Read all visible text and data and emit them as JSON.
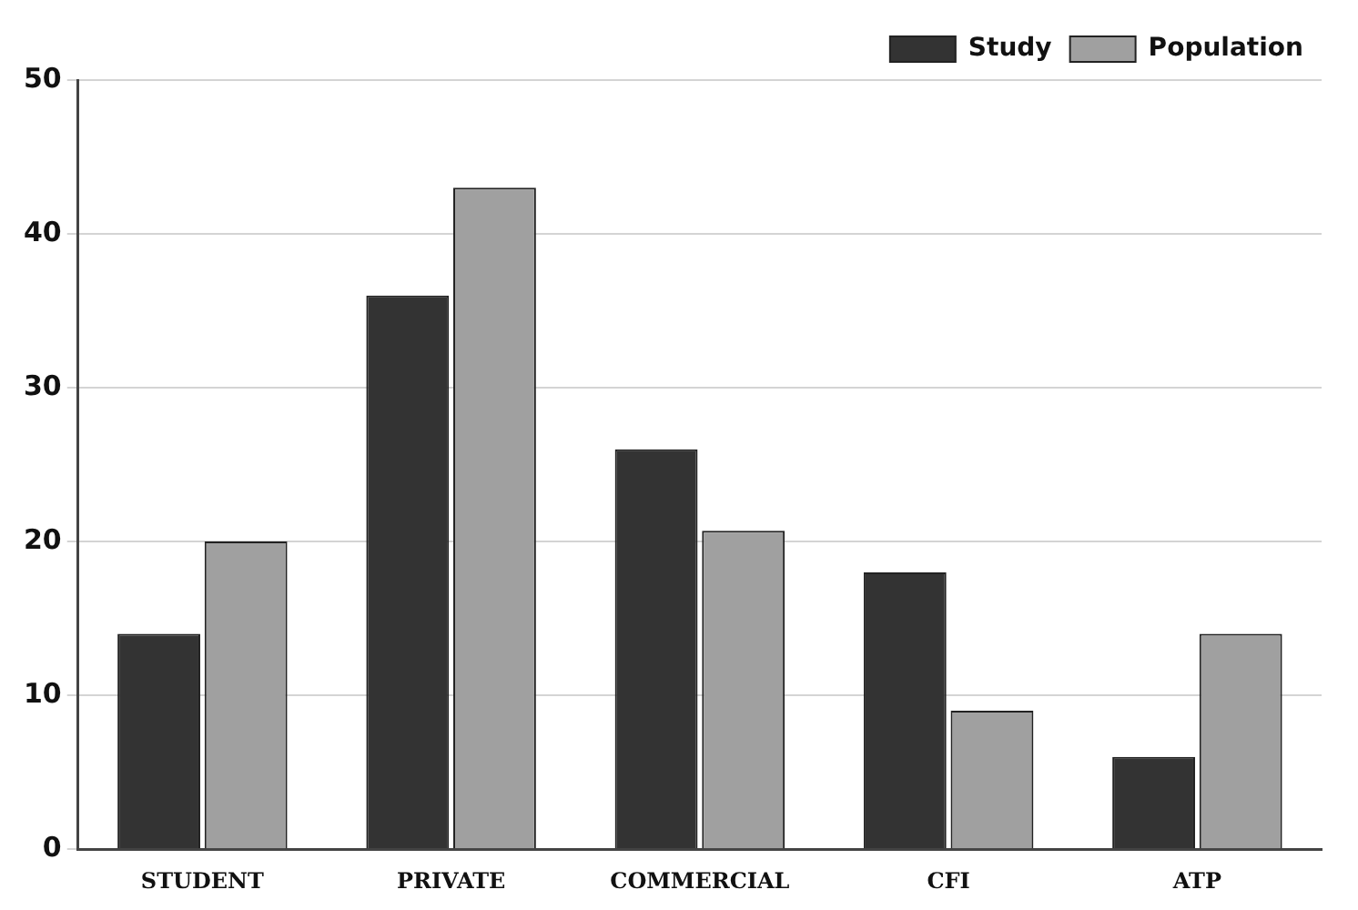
{
  "chart_data": {
    "type": "bar",
    "categories": [
      "STUDENT",
      "PRIVATE",
      "COMMERCIAL",
      "CFI",
      "ATP"
    ],
    "series": [
      {
        "name": "Study",
        "color": "#333333",
        "values": [
          14,
          36,
          26,
          18,
          6
        ]
      },
      {
        "name": "Population",
        "color": "#a0a0a0",
        "values": [
          20,
          43,
          20.7,
          9,
          14
        ]
      }
    ],
    "ylim": [
      0,
      50
    ],
    "yticks": [
      0,
      10,
      20,
      30,
      40,
      50
    ],
    "grid": "y",
    "legend": "top right"
  }
}
